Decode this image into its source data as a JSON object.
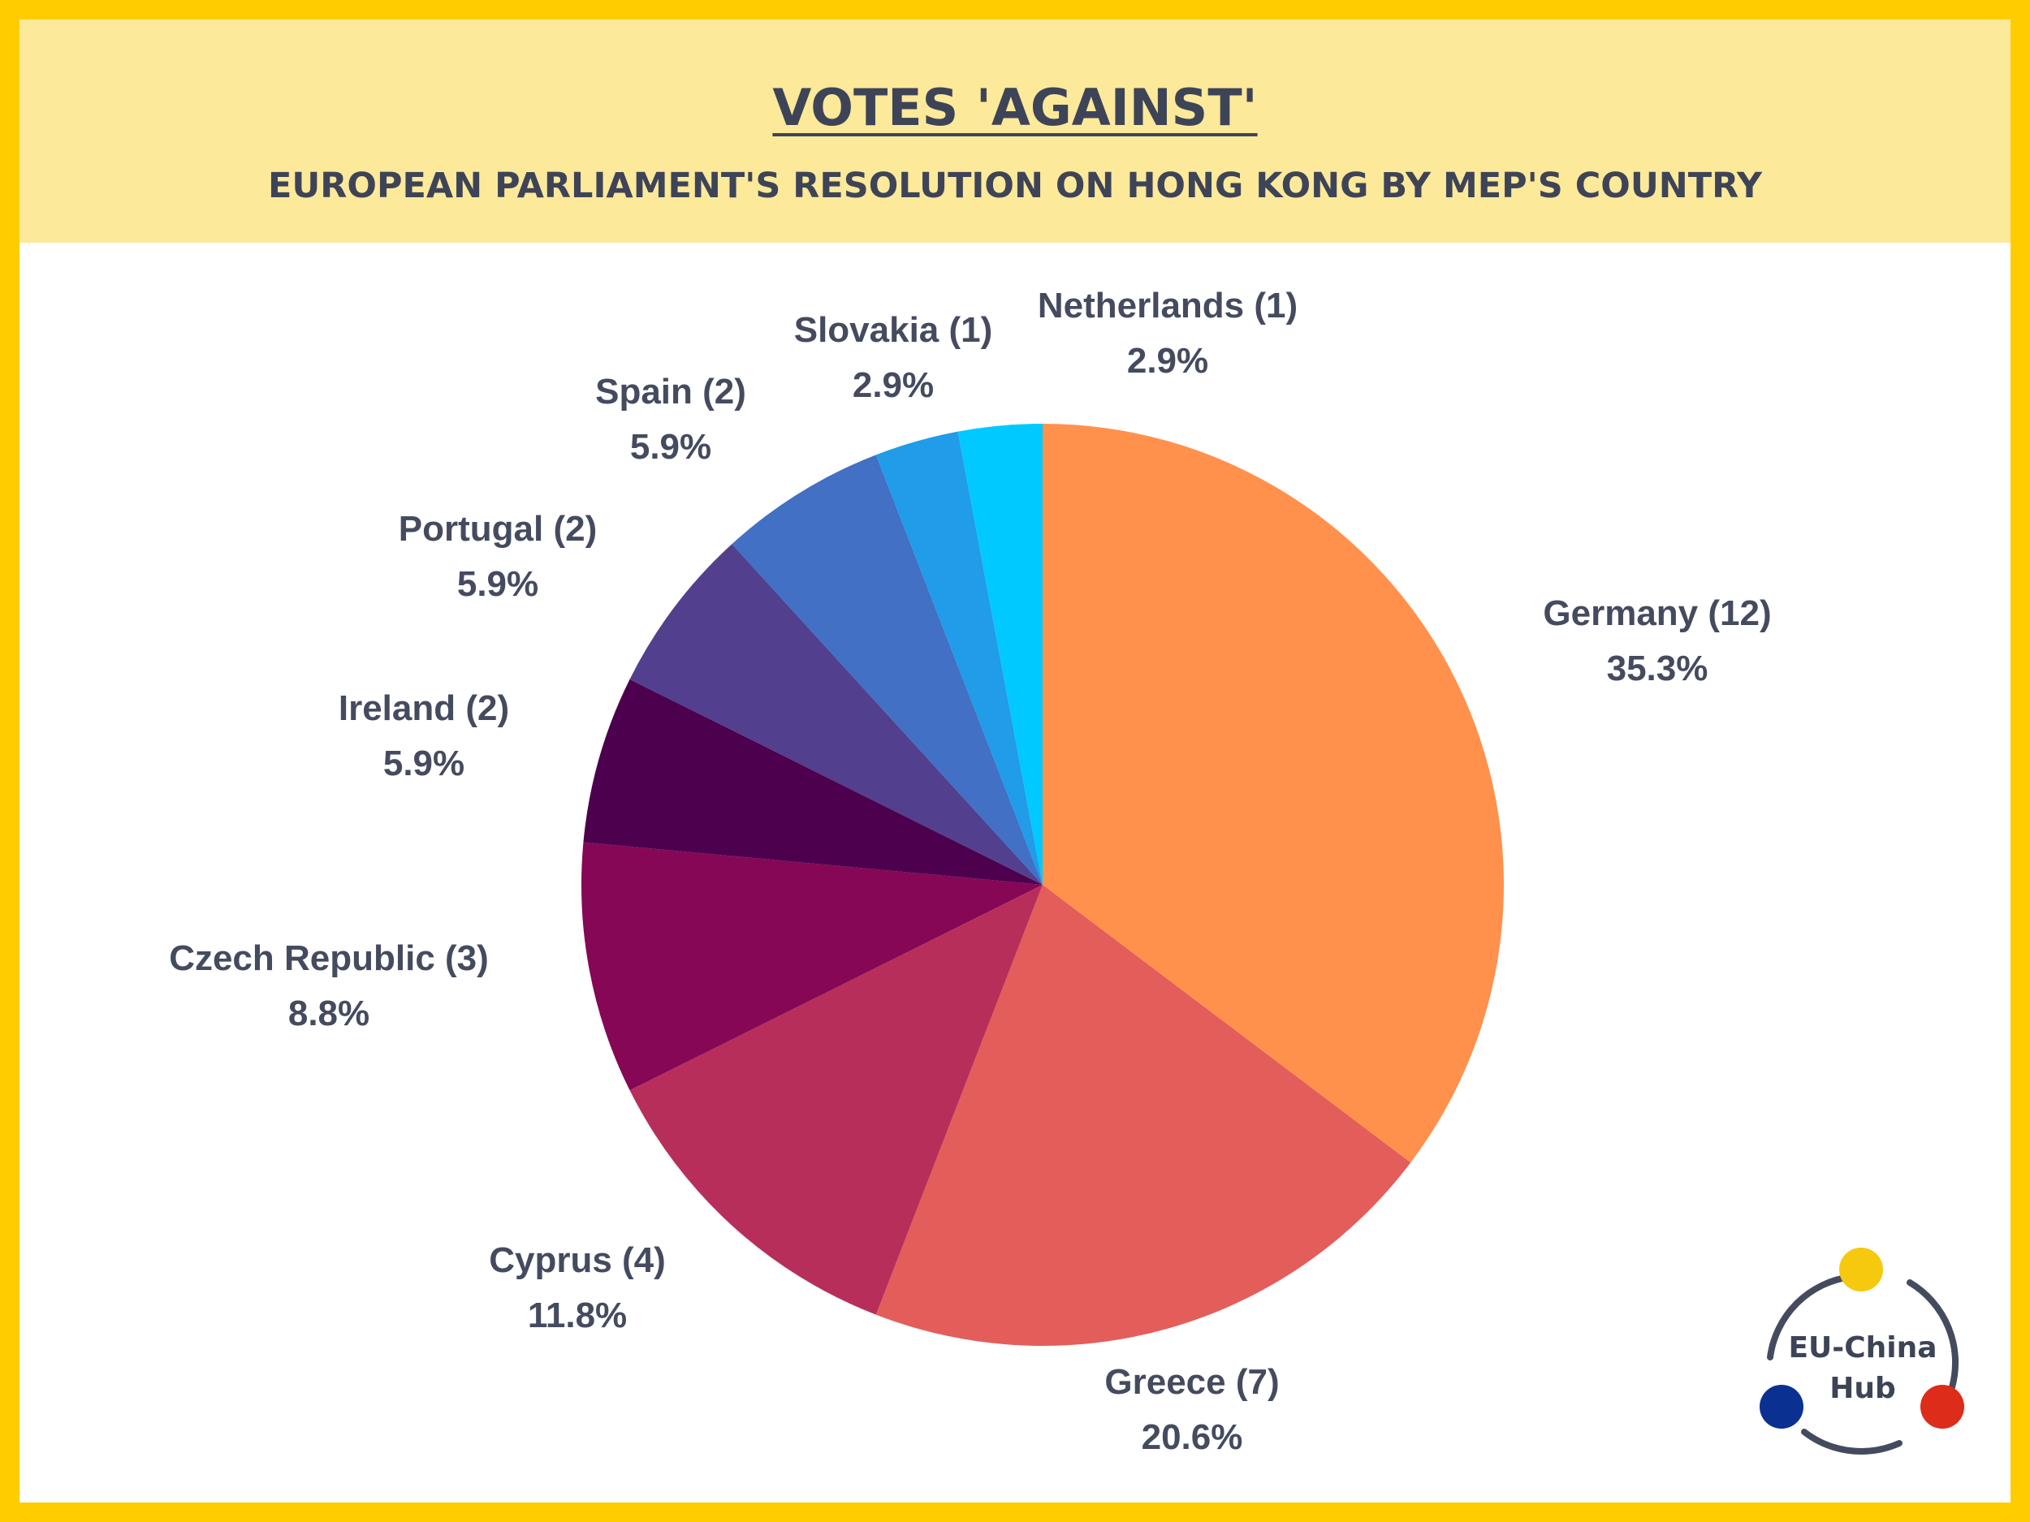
{
  "title": "VOTES 'AGAINST'",
  "subtitle": "EUROPEAN PARLIAMENT'S RESOLUTION ON HONG KONG BY MEP'S COUNTRY",
  "colors": {
    "frame": "#ffcc00",
    "header_bg": "#fde99a",
    "text": "#3e4457"
  },
  "chart_data": {
    "type": "pie",
    "start_angle": "12 o'clock",
    "direction": "clockwise",
    "slices": [
      {
        "label": "Germany (12)",
        "count": 12,
        "percent": "35.3%",
        "color": "#ff914d"
      },
      {
        "label": "Greece (7)",
        "count": 7,
        "percent": "20.6%",
        "color": "#e35d5b"
      },
      {
        "label": "Cyprus (4)",
        "count": 4,
        "percent": "11.8%",
        "color": "#b82e5a"
      },
      {
        "label": "Czech Republic (3)",
        "count": 3,
        "percent": "8.8%",
        "color": "#850756"
      },
      {
        "label": "Ireland (2)",
        "count": 2,
        "percent": "5.9%",
        "color": "#4c004d"
      },
      {
        "label": "Portugal (2)",
        "count": 2,
        "percent": "5.9%",
        "color": "#523f8d"
      },
      {
        "label": "Spain (2)",
        "count": 2,
        "percent": "5.9%",
        "color": "#4170c4"
      },
      {
        "label": "Slovakia (1)",
        "count": 1,
        "percent": "2.9%",
        "color": "#209ce8"
      },
      {
        "label": "Netherlands (1)",
        "count": 1,
        "percent": "2.9%",
        "color": "#00c9ff"
      }
    ]
  },
  "logo": {
    "line1": "EU-China",
    "line2": "Hub",
    "dot_colors": [
      "#f6c90e",
      "#dd2c1a",
      "#0a3192"
    ],
    "ring_color": "#454b5f"
  }
}
